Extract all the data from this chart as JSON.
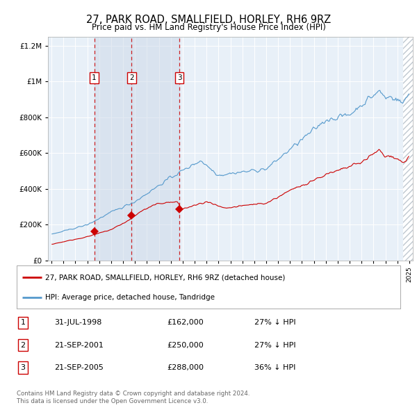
{
  "title": "27, PARK ROAD, SMALLFIELD, HORLEY, RH6 9RZ",
  "subtitle": "Price paid vs. HM Land Registry's House Price Index (HPI)",
  "ylim": [
    0,
    1250000
  ],
  "xlim_start": 1994.7,
  "xlim_end": 2025.3,
  "yticks": [
    0,
    200000,
    400000,
    600000,
    800000,
    1000000,
    1200000
  ],
  "ytick_labels": [
    "£0",
    "£200K",
    "£400K",
    "£600K",
    "£800K",
    "£1M",
    "£1.2M"
  ],
  "sale_dates": [
    1998.58,
    2001.72,
    2005.72
  ],
  "sale_prices": [
    162000,
    250000,
    288000
  ],
  "sale_labels": [
    "1",
    "2",
    "3"
  ],
  "sale_info": [
    {
      "num": "1",
      "date": "31-JUL-1998",
      "price": "£162,000",
      "hpi": "27% ↓ HPI"
    },
    {
      "num": "2",
      "date": "21-SEP-2001",
      "price": "£250,000",
      "hpi": "27% ↓ HPI"
    },
    {
      "num": "3",
      "date": "21-SEP-2005",
      "price": "£288,000",
      "hpi": "36% ↓ HPI"
    }
  ],
  "legend_entries": [
    {
      "label": "27, PARK ROAD, SMALLFIELD, HORLEY, RH6 9RZ (detached house)",
      "color": "#cc0000"
    },
    {
      "label": "HPI: Average price, detached house, Tandridge",
      "color": "#5599cc"
    }
  ],
  "footer_line1": "Contains HM Land Registry data © Crown copyright and database right 2024.",
  "footer_line2": "This data is licensed under the Open Government Licence v3.0.",
  "bg_color": "#e8f0f8",
  "grid_color": "#ffffff",
  "red_color": "#cc0000",
  "blue_color": "#5599cc",
  "hatch_color": "#c0c8d0"
}
